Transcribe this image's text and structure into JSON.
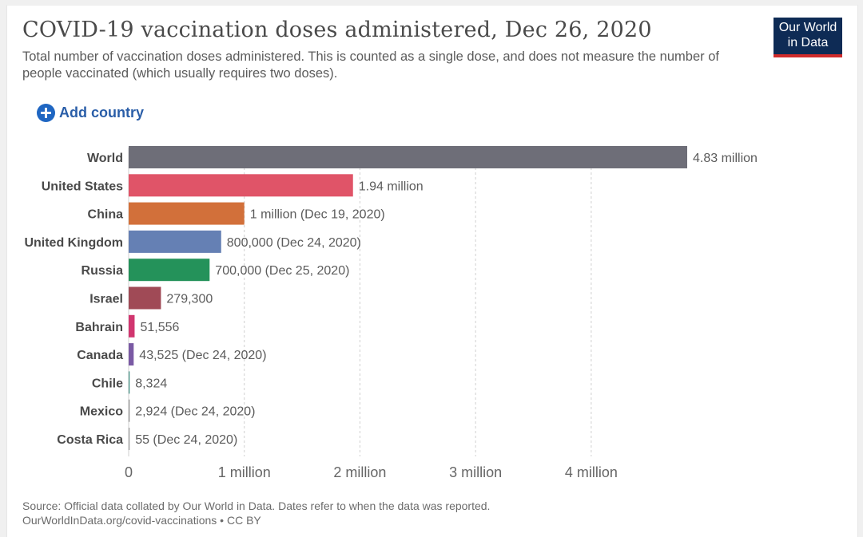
{
  "header": {
    "title": "COVID-19 vaccination doses administered, Dec 26, 2020",
    "subtitle": "Total number of vaccination doses administered. This is counted as a single dose, and does not measure the number of people vaccinated (which usually requires two doses).",
    "logo_line1": "Our World",
    "logo_line2": "in Data"
  },
  "controls": {
    "add_country_label": "Add country"
  },
  "footer": {
    "source_line1": "Source: Official data collated by Our World in Data. Dates refer to when the data was reported.",
    "source_line2": "OurWorldInData.org/covid-vaccinations • CC BY"
  },
  "colors": {
    "logo_bg": "#0e2b55",
    "logo_accent": "#d02b2b",
    "link": "#2a5ea8"
  },
  "chart_data": {
    "type": "bar",
    "orientation": "horizontal",
    "title": "COVID-19 vaccination doses administered, Dec 26, 2020",
    "xlabel": "",
    "ylabel": "",
    "xlim": [
      0,
      4830000
    ],
    "grid": "vertical dashed",
    "ticks": [
      {
        "value": 0,
        "label": "0"
      },
      {
        "value": 1000000,
        "label": "1 million"
      },
      {
        "value": 2000000,
        "label": "2 million"
      },
      {
        "value": 3000000,
        "label": "3 million"
      },
      {
        "value": 4000000,
        "label": "4 million"
      }
    ],
    "categories": [
      "World",
      "United States",
      "China",
      "United Kingdom",
      "Russia",
      "Israel",
      "Bahrain",
      "Canada",
      "Chile",
      "Mexico",
      "Costa Rica"
    ],
    "values": [
      4830000,
      1940000,
      1000000,
      800000,
      700000,
      279300,
      51556,
      43525,
      8324,
      2924,
      55
    ],
    "value_labels": [
      "4.83 million",
      "1.94 million",
      "1 million (Dec 19, 2020)",
      "800,000 (Dec 24, 2020)",
      "700,000 (Dec 25, 2020)",
      "279,300",
      "51,556",
      "43,525 (Dec 24, 2020)",
      "8,324",
      "2,924 (Dec 24, 2020)",
      "55 (Dec 24, 2020)"
    ],
    "bar_colors": [
      "#6e6e78",
      "#e05468",
      "#d2703a",
      "#6580b4",
      "#24925a",
      "#a04a56",
      "#d1366f",
      "#7a5aa4",
      "#3a8a7e",
      "#8a8a8a",
      "#999999"
    ]
  }
}
